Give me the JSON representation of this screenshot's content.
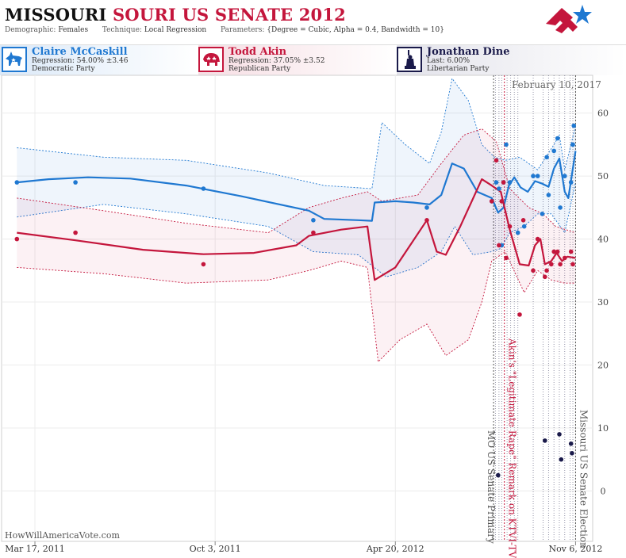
{
  "header": {
    "state": "MISSOURI",
    "title_rest": "SOURI US SENATE 2012",
    "demographic_label": "Demographic:",
    "demographic_value": "Females",
    "technique_label": "Technique:",
    "technique_value": "Local Regression",
    "parameters_label": "Parameters:",
    "parameters_value": "{Degree = Cubic, Alpha = 0.4, Bandwidth = 10}",
    "logo_icon": "star-flag-logo-icon"
  },
  "candidates": [
    {
      "name": "Claire McCaskill",
      "stat": "Regression: 54.00% ±3.46",
      "party": "Democratic Party",
      "color": "#1f78d1",
      "icon": "donkey-icon"
    },
    {
      "name": "Todd Akin",
      "stat": "Regression: 37.05% ±3.52",
      "party": "Republican Party",
      "color": "#c4163c",
      "icon": "elephant-icon"
    },
    {
      "name": "Jonathan Dine",
      "stat": "Last: 6.00%",
      "party": "Libertarian Party",
      "color": "#1a1a4a",
      "icon": "statue-of-liberty-icon"
    }
  ],
  "date_stamp": "February 10, 2017",
  "footer": "HowWillAmericaVote.com",
  "events": [
    {
      "label": "MO US Senate Primary",
      "color": "#555555"
    },
    {
      "label": "Akin's \"Legitimate Rape\" Remark on KTVI-TV",
      "color": "#c4163c"
    },
    {
      "label": "Missouri US Senate Election",
      "color": "#555555"
    }
  ],
  "chart_data": {
    "type": "line",
    "x_type": "date",
    "x_range": [
      "2011-02-08",
      "2012-11-25"
    ],
    "x_ticks": [
      {
        "date": "2011-03-17",
        "label": "Mar 17, 2011"
      },
      {
        "date": "2011-10-03",
        "label": "Oct 3, 2011"
      },
      {
        "date": "2012-04-20",
        "label": "Apr 20, 2012"
      },
      {
        "date": "2012-11-06",
        "label": "Nov 6, 2012"
      }
    ],
    "ylim": [
      -8,
      66
    ],
    "y_ticks": [
      0,
      10,
      20,
      30,
      40,
      50,
      60
    ],
    "grid": true,
    "event_dates": [
      "2012-08-07",
      "2012-08-19",
      "2012-11-06"
    ],
    "poll_dates": [
      "2012-08-09",
      "2012-08-13",
      "2012-08-16",
      "2012-08-22",
      "2012-08-26",
      "2012-08-30",
      "2012-09-03",
      "2012-09-20",
      "2012-10-01",
      "2012-10-07",
      "2012-10-13",
      "2012-10-19",
      "2012-10-25",
      "2012-10-31",
      "2012-11-03"
    ],
    "series": [
      {
        "name": "Claire McCaskill",
        "color": "#1f78d1",
        "points": [
          [
            "2011-02-25",
            49
          ],
          [
            "2011-05-01",
            49
          ],
          [
            "2011-09-20",
            48
          ],
          [
            "2012-01-20",
            43
          ],
          [
            "2012-05-25",
            45
          ],
          [
            "2012-08-05",
            46
          ],
          [
            "2012-08-10",
            49
          ],
          [
            "2012-08-13",
            48
          ],
          [
            "2012-08-16",
            39
          ],
          [
            "2012-08-18",
            49
          ],
          [
            "2012-08-21",
            55
          ],
          [
            "2012-08-25",
            49
          ],
          [
            "2012-09-03",
            41
          ],
          [
            "2012-09-10",
            42
          ],
          [
            "2012-09-20",
            50
          ],
          [
            "2012-09-25",
            50
          ],
          [
            "2012-09-30",
            44
          ],
          [
            "2012-10-05",
            53
          ],
          [
            "2012-10-07",
            47
          ],
          [
            "2012-10-13",
            54
          ],
          [
            "2012-10-17",
            56
          ],
          [
            "2012-10-20",
            45
          ],
          [
            "2012-10-25",
            50
          ],
          [
            "2012-11-01",
            49
          ],
          [
            "2012-11-03",
            55
          ],
          [
            "2012-11-04",
            58
          ]
        ],
        "line": [
          [
            "2011-02-25",
            49
          ],
          [
            "2011-04-01",
            49.5
          ],
          [
            "2011-05-15",
            49.8
          ],
          [
            "2011-07-01",
            49.6
          ],
          [
            "2011-09-01",
            48.5
          ],
          [
            "2011-11-01",
            46.8
          ],
          [
            "2012-01-15",
            44.5
          ],
          [
            "2012-02-01",
            43.2
          ],
          [
            "2012-03-10",
            43
          ],
          [
            "2012-03-25",
            42.9
          ],
          [
            "2012-03-28",
            45.8
          ],
          [
            "2012-04-20",
            46
          ],
          [
            "2012-05-10",
            45.8
          ],
          [
            "2012-05-28",
            45.5
          ],
          [
            "2012-06-10",
            47
          ],
          [
            "2012-06-22",
            52
          ],
          [
            "2012-07-05",
            51.2
          ],
          [
            "2012-07-20",
            47.5
          ],
          [
            "2012-08-05",
            46.5
          ],
          [
            "2012-08-12",
            44.2
          ],
          [
            "2012-08-18",
            45
          ],
          [
            "2012-08-24",
            48.5
          ],
          [
            "2012-08-30",
            49.8
          ],
          [
            "2012-09-06",
            48.2
          ],
          [
            "2012-09-14",
            47.5
          ],
          [
            "2012-09-22",
            49.2
          ],
          [
            "2012-09-30",
            48.8
          ],
          [
            "2012-10-07",
            48.3
          ],
          [
            "2012-10-13",
            51.2
          ],
          [
            "2012-10-19",
            52.8
          ],
          [
            "2012-10-25",
            47.5
          ],
          [
            "2012-10-29",
            46.5
          ],
          [
            "2012-11-06",
            54
          ]
        ],
        "upper": [
          [
            "2011-02-25",
            54.5
          ],
          [
            "2011-06-01",
            53
          ],
          [
            "2011-09-01",
            52.5
          ],
          [
            "2011-12-01",
            50.5
          ],
          [
            "2012-02-01",
            48.5
          ],
          [
            "2012-03-25",
            48
          ],
          [
            "2012-04-05",
            58.5
          ],
          [
            "2012-05-01",
            55
          ],
          [
            "2012-05-28",
            52
          ],
          [
            "2012-06-10",
            57
          ],
          [
            "2012-06-22",
            65.5
          ],
          [
            "2012-07-10",
            62
          ],
          [
            "2012-07-25",
            55
          ],
          [
            "2012-08-08",
            53
          ],
          [
            "2012-08-20",
            52.5
          ],
          [
            "2012-09-05",
            53
          ],
          [
            "2012-09-25",
            51
          ],
          [
            "2012-10-13",
            55
          ],
          [
            "2012-10-19",
            56.5
          ],
          [
            "2012-10-25",
            51
          ],
          [
            "2012-11-06",
            58
          ]
        ],
        "lower": [
          [
            "2011-02-25",
            43.5
          ],
          [
            "2011-06-01",
            45.5
          ],
          [
            "2011-09-01",
            44
          ],
          [
            "2011-12-01",
            42
          ],
          [
            "2012-01-20",
            38
          ],
          [
            "2012-03-10",
            37.5
          ],
          [
            "2012-04-10",
            34
          ],
          [
            "2012-05-15",
            35.5
          ],
          [
            "2012-06-10",
            38
          ],
          [
            "2012-06-25",
            42
          ],
          [
            "2012-07-15",
            37.5
          ],
          [
            "2012-08-05",
            38
          ],
          [
            "2012-08-15",
            38.5
          ],
          [
            "2012-08-25",
            41
          ],
          [
            "2012-09-10",
            42
          ],
          [
            "2012-09-25",
            44
          ],
          [
            "2012-10-10",
            44
          ],
          [
            "2012-10-25",
            41
          ],
          [
            "2012-11-06",
            49
          ]
        ]
      },
      {
        "name": "Todd Akin",
        "color": "#c4163c",
        "points": [
          [
            "2011-02-25",
            40
          ],
          [
            "2011-05-01",
            41
          ],
          [
            "2011-09-20",
            36
          ],
          [
            "2012-01-20",
            41
          ],
          [
            "2012-05-25",
            43
          ],
          [
            "2012-08-05",
            46
          ],
          [
            "2012-08-10",
            52.5
          ],
          [
            "2012-08-13",
            39
          ],
          [
            "2012-08-16",
            46
          ],
          [
            "2012-08-18",
            49
          ],
          [
            "2012-08-21",
            37
          ],
          [
            "2012-08-25",
            42
          ],
          [
            "2012-09-05",
            28
          ],
          [
            "2012-09-09",
            43
          ],
          [
            "2012-09-20",
            35
          ],
          [
            "2012-09-25",
            40
          ],
          [
            "2012-10-03",
            34
          ],
          [
            "2012-10-05",
            35
          ],
          [
            "2012-10-10",
            36
          ],
          [
            "2012-10-13",
            38
          ],
          [
            "2012-10-17",
            38
          ],
          [
            "2012-10-20",
            36
          ],
          [
            "2012-10-25",
            37
          ],
          [
            "2012-11-01",
            38
          ],
          [
            "2012-11-03",
            36
          ]
        ],
        "line": [
          [
            "2011-02-25",
            41
          ],
          [
            "2011-05-01",
            39.8
          ],
          [
            "2011-07-15",
            38.3
          ],
          [
            "2011-09-20",
            37.6
          ],
          [
            "2011-11-15",
            37.8
          ],
          [
            "2012-01-01",
            39
          ],
          [
            "2012-01-15",
            40.5
          ],
          [
            "2012-02-20",
            41.5
          ],
          [
            "2012-03-20",
            42
          ],
          [
            "2012-03-28",
            33.5
          ],
          [
            "2012-04-20",
            35.5
          ],
          [
            "2012-05-25",
            43
          ],
          [
            "2012-06-05",
            38
          ],
          [
            "2012-06-15",
            37.5
          ],
          [
            "2012-07-01",
            42
          ],
          [
            "2012-07-25",
            49.5
          ],
          [
            "2012-08-05",
            48.5
          ],
          [
            "2012-08-15",
            47.5
          ],
          [
            "2012-08-25",
            41.5
          ],
          [
            "2012-09-05",
            36
          ],
          [
            "2012-09-15",
            35.8
          ],
          [
            "2012-09-22",
            39
          ],
          [
            "2012-09-28",
            40
          ],
          [
            "2012-10-03",
            36
          ],
          [
            "2012-10-10",
            36.5
          ],
          [
            "2012-10-16",
            37.8
          ],
          [
            "2012-10-22",
            36.5
          ],
          [
            "2012-10-28",
            37.2
          ],
          [
            "2012-11-06",
            37
          ]
        ],
        "upper": [
          [
            "2011-02-25",
            46.5
          ],
          [
            "2011-06-01",
            44.5
          ],
          [
            "2011-09-01",
            42.5
          ],
          [
            "2011-12-01",
            41
          ],
          [
            "2012-01-15",
            45
          ],
          [
            "2012-02-20",
            46.5
          ],
          [
            "2012-03-20",
            47.5
          ],
          [
            "2012-04-05",
            46
          ],
          [
            "2012-05-15",
            47
          ],
          [
            "2012-06-10",
            52
          ],
          [
            "2012-07-05",
            56.5
          ],
          [
            "2012-07-25",
            57.5
          ],
          [
            "2012-08-10",
            55.5
          ],
          [
            "2012-08-25",
            48
          ],
          [
            "2012-09-15",
            45
          ],
          [
            "2012-10-01",
            44
          ],
          [
            "2012-10-15",
            42
          ],
          [
            "2012-11-06",
            41
          ]
        ],
        "lower": [
          [
            "2011-02-25",
            35.5
          ],
          [
            "2011-06-01",
            34.5
          ],
          [
            "2011-09-01",
            33
          ],
          [
            "2011-12-01",
            33.5
          ],
          [
            "2012-01-15",
            35
          ],
          [
            "2012-02-20",
            36.5
          ],
          [
            "2012-03-20",
            35.5
          ],
          [
            "2012-04-01",
            20.5
          ],
          [
            "2012-04-25",
            24
          ],
          [
            "2012-05-25",
            26.5
          ],
          [
            "2012-06-15",
            21.5
          ],
          [
            "2012-07-10",
            24
          ],
          [
            "2012-07-25",
            30
          ],
          [
            "2012-08-05",
            36.5
          ],
          [
            "2012-08-20",
            38
          ],
          [
            "2012-09-10",
            31.5
          ],
          [
            "2012-09-25",
            35
          ],
          [
            "2012-10-10",
            33.5
          ],
          [
            "2012-10-25",
            33
          ],
          [
            "2012-11-06",
            33
          ]
        ]
      },
      {
        "name": "Jonathan Dine",
        "color": "#1a1a4a",
        "points": [
          [
            "2012-08-12",
            2.5
          ],
          [
            "2012-10-03",
            8
          ],
          [
            "2012-10-19",
            9
          ],
          [
            "2012-10-21",
            5
          ],
          [
            "2012-11-01",
            7.5
          ],
          [
            "2012-11-02",
            6
          ]
        ]
      }
    ]
  }
}
